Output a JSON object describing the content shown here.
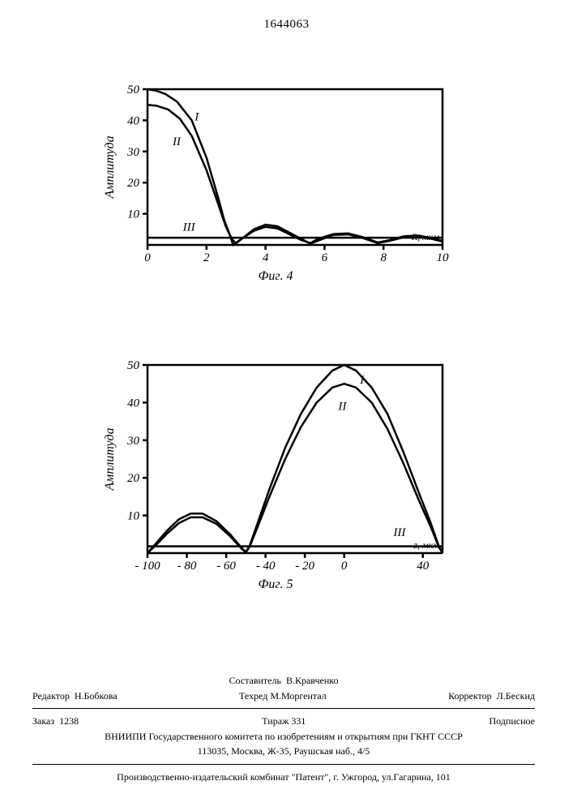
{
  "document_number": "1644063",
  "chart4": {
    "type": "line",
    "caption": "Фиг. 4",
    "ylabel": "Амплитуда",
    "x_axis_title": "R, мкм",
    "xlim": [
      0,
      10
    ],
    "ylim": [
      0,
      50
    ],
    "xticks": [
      0,
      2,
      4,
      6,
      8,
      10
    ],
    "yticks": [
      0,
      10,
      20,
      30,
      40,
      50
    ],
    "line_width": 2.5,
    "axis_color": "#000000",
    "background_color": "#ffffff",
    "series": [
      {
        "name": "I",
        "label_xy": [
          1.6,
          40
        ],
        "points": [
          [
            0,
            50
          ],
          [
            0.3,
            49.5
          ],
          [
            0.6,
            48.5
          ],
          [
            1.0,
            46
          ],
          [
            1.5,
            40
          ],
          [
            2.0,
            28
          ],
          [
            2.4,
            15
          ],
          [
            2.6,
            8
          ],
          [
            2.8,
            3
          ],
          [
            2.9,
            0
          ],
          [
            3.2,
            2
          ],
          [
            3.6,
            5
          ],
          [
            4.0,
            6.5
          ],
          [
            4.4,
            6
          ],
          [
            4.8,
            4
          ],
          [
            5.2,
            2
          ],
          [
            5.5,
            0.5
          ],
          [
            5.8,
            2
          ],
          [
            6.3,
            3.5
          ],
          [
            6.8,
            3.7
          ],
          [
            7.3,
            2.5
          ],
          [
            7.8,
            0.8
          ],
          [
            8.2,
            1.5
          ],
          [
            8.7,
            2.8
          ],
          [
            9.2,
            3
          ],
          [
            9.6,
            2.2
          ],
          [
            10,
            1.3
          ]
        ]
      },
      {
        "name": "II",
        "label_xy": [
          0.85,
          32
        ],
        "points": [
          [
            0,
            45
          ],
          [
            0.3,
            44.7
          ],
          [
            0.7,
            43.5
          ],
          [
            1.1,
            40.5
          ],
          [
            1.5,
            35
          ],
          [
            2.0,
            24
          ],
          [
            2.4,
            13
          ],
          [
            2.65,
            6
          ],
          [
            2.85,
            2
          ],
          [
            3.0,
            0.5
          ],
          [
            3.2,
            2
          ],
          [
            3.6,
            4.5
          ],
          [
            4.0,
            5.8
          ],
          [
            4.4,
            5.3
          ],
          [
            4.8,
            3.5
          ],
          [
            5.2,
            1.6
          ],
          [
            5.55,
            0.5
          ],
          [
            5.9,
            1.8
          ],
          [
            6.3,
            3.2
          ],
          [
            6.8,
            3.4
          ],
          [
            7.3,
            2.2
          ],
          [
            7.8,
            0.6
          ],
          [
            8.2,
            1.3
          ],
          [
            8.7,
            2.5
          ],
          [
            9.2,
            2.7
          ],
          [
            9.6,
            2.0
          ],
          [
            10,
            1.1
          ]
        ]
      },
      {
        "name": "III",
        "label_xy": [
          1.2,
          4.5
        ],
        "points": [
          [
            0,
            2.3
          ],
          [
            10,
            2.3
          ]
        ]
      }
    ]
  },
  "chart5": {
    "type": "line",
    "caption": "Фиг. 5",
    "ylabel": "Амплитуда",
    "x_axis_title": "z, мкм",
    "xlim": [
      -100,
      50
    ],
    "ylim": [
      0,
      50
    ],
    "xticks": [
      -100,
      -80,
      -60,
      -40,
      -20,
      0,
      40
    ],
    "yticks": [
      0,
      10,
      20,
      30,
      40,
      50
    ],
    "line_width": 2.5,
    "axis_color": "#000000",
    "background_color": "#ffffff",
    "series": [
      {
        "name": "I",
        "label_xy": [
          8,
          45
        ],
        "points": [
          [
            -100,
            0
          ],
          [
            -95,
            3
          ],
          [
            -90,
            6
          ],
          [
            -84,
            9
          ],
          [
            -78,
            10.5
          ],
          [
            -72,
            10.5
          ],
          [
            -65,
            8.5
          ],
          [
            -58,
            5
          ],
          [
            -52,
            1.3
          ],
          [
            -50,
            0.3
          ],
          [
            -48,
            2
          ],
          [
            -44,
            8
          ],
          [
            -38,
            17
          ],
          [
            -30,
            28
          ],
          [
            -22,
            37
          ],
          [
            -14,
            44
          ],
          [
            -6,
            48.5
          ],
          [
            0,
            50
          ],
          [
            6,
            48.5
          ],
          [
            14,
            44
          ],
          [
            22,
            37
          ],
          [
            30,
            27
          ],
          [
            38,
            16
          ],
          [
            44,
            8
          ],
          [
            48,
            2
          ],
          [
            50,
            0
          ]
        ]
      },
      {
        "name": "II",
        "label_xy": [
          -3,
          38
        ],
        "points": [
          [
            -100,
            0
          ],
          [
            -95,
            2.5
          ],
          [
            -90,
            5.2
          ],
          [
            -84,
            8
          ],
          [
            -78,
            9.5
          ],
          [
            -72,
            9.5
          ],
          [
            -65,
            7.8
          ],
          [
            -58,
            4.5
          ],
          [
            -52,
            1.1
          ],
          [
            -50,
            0.2
          ],
          [
            -48,
            1.8
          ],
          [
            -44,
            7
          ],
          [
            -38,
            15
          ],
          [
            -30,
            25
          ],
          [
            -22,
            33.5
          ],
          [
            -14,
            40
          ],
          [
            -6,
            44
          ],
          [
            0,
            45
          ],
          [
            6,
            44
          ],
          [
            14,
            40
          ],
          [
            22,
            33
          ],
          [
            30,
            24
          ],
          [
            38,
            14
          ],
          [
            44,
            7
          ],
          [
            48,
            1.8
          ],
          [
            50,
            0
          ]
        ]
      },
      {
        "name": "III",
        "label_xy": [
          25,
          4.5
        ],
        "points": [
          [
            -100,
            1.8
          ],
          [
            50,
            1.8
          ]
        ]
      }
    ]
  },
  "footer": {
    "compiler_label": "Составитель",
    "compiler_name": "В.Кравченко",
    "editor_label": "Редактор",
    "editor_name": "Н.Бобкова",
    "techred_label": "Техред",
    "techred_name": "М.Моргентал",
    "corrector_label": "Корректор",
    "corrector_name": "Л.Бескид",
    "order_label": "Заказ",
    "order_num": "1238",
    "print_run_label": "Тираж",
    "print_run_num": "331",
    "subscription": "Подписное",
    "org_line1": "ВНИИПИ Государственного комитета по изобретениям и открытиям при ГКНТ СССР",
    "org_line2": "113035, Москва, Ж-35, Раушская наб., 4/5",
    "press_line": "Производственно-издательский комбинат \"Патент\", г. Ужгород, ул.Гагарина, 101"
  }
}
